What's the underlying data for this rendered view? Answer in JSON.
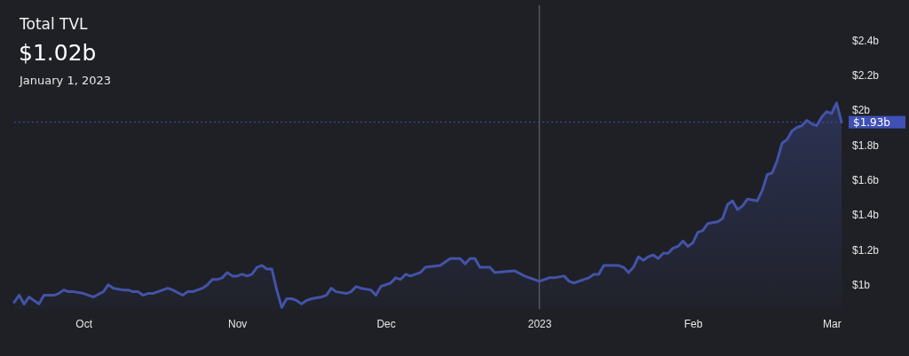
{
  "chart_data": {
    "type": "area",
    "title": "Total TVL",
    "subtitle": "$1.02b",
    "annotations": [
      "January 1, 2023"
    ],
    "x": [
      "2022-09-17",
      "2022-09-18",
      "2022-09-19",
      "2022-09-20",
      "2022-09-21",
      "2022-09-22",
      "2022-09-23",
      "2022-09-25",
      "2022-09-26",
      "2022-09-27",
      "2022-09-28",
      "2022-09-29",
      "2022-10-01",
      "2022-10-02",
      "2022-10-03",
      "2022-10-05",
      "2022-10-06",
      "2022-10-07",
      "2022-10-09",
      "2022-10-10",
      "2022-10-11",
      "2022-10-12",
      "2022-10-13",
      "2022-10-14",
      "2022-10-15",
      "2022-10-17",
      "2022-10-18",
      "2022-10-19",
      "2022-10-21",
      "2022-10-22",
      "2022-10-23",
      "2022-10-24",
      "2022-10-25",
      "2022-10-26",
      "2022-10-27",
      "2022-10-28",
      "2022-10-29",
      "2022-10-30",
      "2022-10-31",
      "2022-11-01",
      "2022-11-02",
      "2022-11-03",
      "2022-11-04",
      "2022-11-05",
      "2022-11-06",
      "2022-11-07",
      "2022-11-08",
      "2022-11-09",
      "2022-11-10",
      "2022-11-11",
      "2022-11-12",
      "2022-11-13",
      "2022-11-14",
      "2022-11-15",
      "2022-11-16",
      "2022-11-18",
      "2022-11-19",
      "2022-11-20",
      "2022-11-21",
      "2022-11-23",
      "2022-11-24",
      "2022-11-25",
      "2022-11-26",
      "2022-11-28",
      "2022-11-29",
      "2022-11-30",
      "2022-12-01",
      "2022-12-02",
      "2022-12-03",
      "2022-12-04",
      "2022-12-05",
      "2022-12-06",
      "2022-12-08",
      "2022-12-09",
      "2022-12-12",
      "2022-12-14",
      "2022-12-16",
      "2022-12-17",
      "2022-12-18",
      "2022-12-19",
      "2022-12-20",
      "2022-12-22",
      "2022-12-23",
      "2022-12-27",
      "2022-12-29",
      "2022-12-30",
      "2023-01-01",
      "2023-01-03",
      "2023-01-04",
      "2023-01-06",
      "2023-01-07",
      "2023-01-08",
      "2023-01-10",
      "2023-01-11",
      "2023-01-12",
      "2023-01-13",
      "2023-01-14",
      "2023-01-15",
      "2023-01-17",
      "2023-01-18",
      "2023-01-19",
      "2023-01-20",
      "2023-01-21",
      "2023-01-22",
      "2023-01-23",
      "2023-01-24",
      "2023-01-25",
      "2023-01-26",
      "2023-01-27",
      "2023-01-28",
      "2023-01-29",
      "2023-01-30",
      "2023-01-31",
      "2023-02-01",
      "2023-02-02",
      "2023-02-03",
      "2023-02-04",
      "2023-02-06",
      "2023-02-07",
      "2023-02-08",
      "2023-02-09",
      "2023-02-10",
      "2023-02-11",
      "2023-02-12",
      "2023-02-14",
      "2023-02-15",
      "2023-02-16",
      "2023-02-17",
      "2023-02-18",
      "2023-02-19",
      "2023-02-20",
      "2023-02-21",
      "2023-02-22",
      "2023-02-23",
      "2023-02-24",
      "2023-02-25",
      "2023-02-26",
      "2023-02-27",
      "2023-02-28",
      "2023-03-01",
      "2023-03-02",
      "2023-03-03"
    ],
    "series": [
      {
        "color": "#4353a8",
        "values": [
          0.9,
          0.94,
          0.89,
          0.93,
          0.91,
          0.89,
          0.94,
          0.94,
          0.95,
          0.97,
          0.96,
          0.96,
          0.95,
          0.94,
          0.93,
          0.96,
          1.0,
          0.98,
          0.97,
          0.97,
          0.96,
          0.96,
          0.94,
          0.95,
          0.95,
          0.97,
          0.98,
          0.97,
          0.94,
          0.96,
          0.96,
          0.97,
          0.98,
          1.0,
          1.03,
          1.03,
          1.04,
          1.07,
          1.05,
          1.05,
          1.06,
          1.05,
          1.06,
          1.1,
          1.11,
          1.09,
          1.09,
          0.97,
          0.87,
          0.92,
          0.92,
          0.91,
          0.89,
          0.91,
          0.92,
          0.93,
          0.94,
          0.98,
          0.96,
          0.95,
          0.96,
          0.99,
          0.98,
          0.97,
          0.94,
          0.99,
          1.0,
          1.01,
          1.04,
          1.03,
          1.06,
          1.05,
          1.07,
          1.1,
          1.11,
          1.15,
          1.15,
          1.12,
          1.15,
          1.15,
          1.1,
          1.1,
          1.07,
          1.08,
          1.05,
          1.04,
          1.02,
          1.04,
          1.04,
          1.05,
          1.02,
          1.01,
          1.03,
          1.04,
          1.06,
          1.06,
          1.11,
          1.11,
          1.11,
          1.1,
          1.07,
          1.1,
          1.16,
          1.14,
          1.16,
          1.17,
          1.15,
          1.18,
          1.18,
          1.21,
          1.22,
          1.25,
          1.22,
          1.24,
          1.3,
          1.31,
          1.35,
          1.36,
          1.38,
          1.46,
          1.48,
          1.43,
          1.45,
          1.49,
          1.48,
          1.54,
          1.63,
          1.64,
          1.71,
          1.81,
          1.83,
          1.88,
          1.9,
          1.91,
          1.94,
          1.92,
          1.91,
          1.96,
          1.99,
          1.98,
          2.04,
          1.93
        ]
      }
    ],
    "xlim": [
      "2022-09-17",
      "2023-03-03"
    ],
    "xticks": [
      {
        "value": "2022-10-01",
        "label": "Oct"
      },
      {
        "value": "2022-11-01",
        "label": "Nov"
      },
      {
        "value": "2022-12-01",
        "label": "Dec"
      },
      {
        "value": "2023-01-01",
        "label": "2023"
      },
      {
        "value": "2023-02-01",
        "label": "Feb"
      },
      {
        "value": "2023-03-01",
        "label": "Mar"
      }
    ],
    "ylim": [
      0.86,
      2.6
    ],
    "yticks": [
      {
        "value": 1,
        "label": "$1b"
      },
      {
        "value": 1.2,
        "label": "$1.2b"
      },
      {
        "value": 1.4,
        "label": "$1.4b"
      },
      {
        "value": 1.6,
        "label": "$1.6b"
      },
      {
        "value": 1.8,
        "label": "$1.8b"
      },
      {
        "value": 2,
        "label": "$2b"
      },
      {
        "value": 2.2,
        "label": "$2.2b"
      },
      {
        "value": 2.4,
        "label": "$2.4b"
      }
    ],
    "ref_lines": [
      {
        "axis": "y",
        "value": 1.93,
        "label": "$1.93b",
        "color": "#3f51b5",
        "line_style": "dotted"
      },
      {
        "axis": "x",
        "value": "2023-01-01",
        "label": null,
        "color": "#55565c",
        "line_style": "solid"
      }
    ]
  }
}
